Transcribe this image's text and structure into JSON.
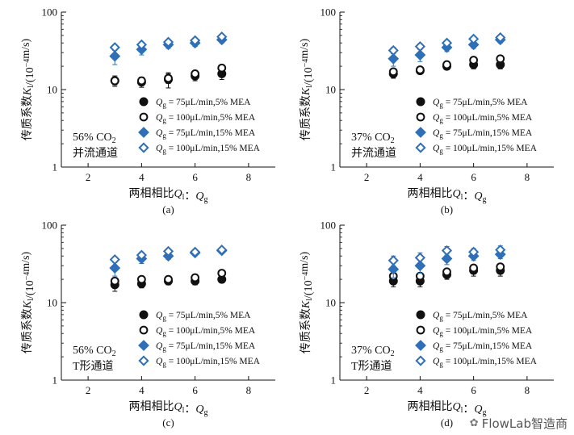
{
  "chart_data": [
    {
      "type": "scatter",
      "panel_label": "(a)",
      "condition": [
        "56% CO",
        "2",
        "并流通道"
      ],
      "xlabel": [
        "两相相比",
        "Q",
        "l",
        "：",
        "Q",
        "g"
      ],
      "ylabel": [
        "传质系数",
        "K",
        "l",
        "/(10",
        "−4",
        "m/s)"
      ],
      "xlim": [
        1,
        9
      ],
      "ylim": [
        1,
        100
      ],
      "yscale": "log",
      "xticks": [
        "2",
        "4",
        "6",
        "8"
      ],
      "yticks": [
        "1",
        "10",
        "100"
      ],
      "series": [
        {
          "name": [
            "Q",
            "g",
            " = 75μL/min,5% MEA"
          ],
          "marker": "filled-circle",
          "color": "#111111",
          "x": [
            3,
            4,
            5,
            6,
            7
          ],
          "y": [
            13,
            12.5,
            13.5,
            15,
            16
          ],
          "err": [
            2,
            1.8,
            3,
            2,
            2.5
          ]
        },
        {
          "name": [
            "Q",
            "g",
            " = 100μL/min,5% MEA"
          ],
          "marker": "open-circle",
          "color": "#111111",
          "x": [
            3,
            4,
            5,
            6,
            7
          ],
          "y": [
            13,
            13,
            14,
            16,
            19
          ],
          "err": [
            1.5,
            1.5,
            2,
            1.5,
            1.5
          ]
        },
        {
          "name": [
            "Q",
            "g",
            " = 75μL/min,15% MEA"
          ],
          "marker": "filled-diamond",
          "color": "#2e6fb8",
          "x": [
            3,
            4,
            5,
            6,
            7
          ],
          "y": [
            27,
            33,
            38,
            40,
            44
          ],
          "err": [
            6,
            5,
            4,
            4,
            4
          ]
        },
        {
          "name": [
            "Q",
            "g",
            " = 100μL/min,15% MEA"
          ],
          "marker": "open-diamond",
          "color": "#2e6fb8",
          "x": [
            3,
            4,
            5,
            6,
            7
          ],
          "y": [
            35,
            38,
            41,
            43,
            48
          ],
          "err": [
            3,
            3,
            3,
            3,
            3
          ]
        }
      ]
    },
    {
      "type": "scatter",
      "panel_label": "(b)",
      "condition": [
        "37% CO",
        "2",
        "并流通道"
      ],
      "xlabel": [
        "两相相比",
        "Q",
        "l",
        "：",
        "Q",
        "g"
      ],
      "ylabel": [
        "传质系数",
        "K",
        "l",
        "/(10",
        "−4",
        "m/s)"
      ],
      "xlim": [
        1,
        9
      ],
      "ylim": [
        1,
        100
      ],
      "yscale": "log",
      "xticks": [
        "2",
        "4",
        "6",
        "8"
      ],
      "yticks": [
        "1",
        "10",
        "100"
      ],
      "series": [
        {
          "name": [
            "Q",
            "g",
            " = 75μL/min,5% MEA"
          ],
          "marker": "filled-circle",
          "color": "#111111",
          "x": [
            3,
            4,
            5,
            6,
            7
          ],
          "y": [
            16,
            17.5,
            20,
            21,
            21
          ],
          "err": [
            2,
            1.5,
            2,
            2.5,
            2.5
          ]
        },
        {
          "name": [
            "Q",
            "g",
            " = 100μL/min,5% MEA"
          ],
          "marker": "open-circle",
          "color": "#111111",
          "x": [
            3,
            4,
            5,
            6,
            7
          ],
          "y": [
            17,
            18,
            21,
            24,
            25
          ],
          "err": [
            1.5,
            1.5,
            1.5,
            2,
            2
          ]
        },
        {
          "name": [
            "Q",
            "g",
            " = 75μL/min,15% MEA"
          ],
          "marker": "filled-diamond",
          "color": "#2e6fb8",
          "x": [
            3,
            4,
            5,
            6,
            7
          ],
          "y": [
            25,
            28,
            35,
            38,
            44
          ],
          "err": [
            5,
            5,
            4,
            4,
            4
          ]
        },
        {
          "name": [
            "Q",
            "g",
            " = 100μL/min,15% MEA"
          ],
          "marker": "open-diamond",
          "color": "#2e6fb8",
          "x": [
            3,
            4,
            5,
            6,
            7
          ],
          "y": [
            32,
            36,
            40,
            45,
            47
          ],
          "err": [
            3,
            3,
            3,
            3,
            3
          ]
        }
      ]
    },
    {
      "type": "scatter",
      "panel_label": "(c)",
      "condition": [
        "56% CO",
        "2",
        "T形通道"
      ],
      "xlabel": [
        "两相相比",
        "Q",
        "l",
        "：",
        "Q",
        "g"
      ],
      "ylabel": [
        "传质系数",
        "K",
        "l",
        "/(10",
        "−4",
        "m/s)"
      ],
      "xlim": [
        1,
        9
      ],
      "ylim": [
        1,
        100
      ],
      "yscale": "log",
      "xticks": [
        "2",
        "4",
        "6",
        "8"
      ],
      "yticks": [
        "1",
        "10",
        "100"
      ],
      "series": [
        {
          "name": [
            "Q",
            "g",
            " = 75μL/min,5% MEA"
          ],
          "marker": "filled-circle",
          "color": "#111111",
          "x": [
            3,
            4,
            5,
            6,
            7
          ],
          "y": [
            17,
            17.5,
            19,
            19,
            20
          ],
          "err": [
            3,
            2,
            2,
            2,
            2
          ]
        },
        {
          "name": [
            "Q",
            "g",
            " = 100μL/min,5% MEA"
          ],
          "marker": "open-circle",
          "color": "#111111",
          "x": [
            3,
            4,
            5,
            6,
            7
          ],
          "y": [
            19,
            20,
            20,
            21,
            24
          ],
          "err": [
            2,
            1.5,
            1.5,
            1.5,
            1.5
          ]
        },
        {
          "name": [
            "Q",
            "g",
            " = 75μL/min,15% MEA"
          ],
          "marker": "filled-diamond",
          "color": "#2e6fb8",
          "x": [
            3,
            4,
            5,
            6,
            7
          ],
          "y": [
            28,
            37,
            40,
            44,
            47
          ],
          "err": [
            6,
            5,
            4,
            4,
            4
          ]
        },
        {
          "name": [
            "Q",
            "g",
            " = 100μL/min,15% MEA"
          ],
          "marker": "open-diamond",
          "color": "#2e6fb8",
          "x": [
            3,
            4,
            5,
            6,
            7
          ],
          "y": [
            36,
            41,
            46,
            45,
            48
          ],
          "err": [
            3,
            4,
            3,
            3,
            3
          ]
        }
      ]
    },
    {
      "type": "scatter",
      "panel_label": "(d)",
      "condition": [
        "37% CO",
        "2",
        "T形通道"
      ],
      "xlabel": [
        "两相相比",
        "Q",
        "l",
        "：",
        "Q",
        "g"
      ],
      "ylabel": [
        "传质系数",
        "K",
        "l",
        "/(10",
        "−4",
        "m/s)"
      ],
      "xlim": [
        1,
        9
      ],
      "ylim": [
        1,
        100
      ],
      "yscale": "log",
      "xticks": [
        "2",
        "4",
        "6",
        "8"
      ],
      "yticks": [
        "1",
        "10",
        "100"
      ],
      "series": [
        {
          "name": [
            "Q",
            "g",
            " = 75μL/min,5% MEA"
          ],
          "marker": "filled-circle",
          "color": "#111111",
          "x": [
            3,
            4,
            5,
            6,
            7
          ],
          "y": [
            19,
            19,
            23,
            26,
            26
          ],
          "err": [
            3,
            3,
            3,
            4,
            4
          ]
        },
        {
          "name": [
            "Q",
            "g",
            " = 100μL/min,5% MEA"
          ],
          "marker": "open-circle",
          "color": "#111111",
          "x": [
            3,
            4,
            5,
            6,
            7
          ],
          "y": [
            22,
            22,
            25,
            28,
            29
          ],
          "err": [
            2,
            2,
            2,
            2,
            2
          ]
        },
        {
          "name": [
            "Q",
            "g",
            " = 75μL/min,15% MEA"
          ],
          "marker": "filled-diamond",
          "color": "#2e6fb8",
          "x": [
            3,
            4,
            5,
            6,
            7
          ],
          "y": [
            27,
            30,
            37,
            40,
            42
          ],
          "err": [
            6,
            6,
            6,
            5,
            5
          ]
        },
        {
          "name": [
            "Q",
            "g",
            " = 100μL/min,15% MEA"
          ],
          "marker": "open-diamond",
          "color": "#2e6fb8",
          "x": [
            3,
            4,
            5,
            6,
            7
          ],
          "y": [
            35,
            38,
            47,
            45,
            48
          ],
          "err": [
            5,
            6,
            6,
            5,
            6
          ]
        }
      ]
    }
  ],
  "watermark": {
    "icon": "wechat-icon",
    "text": "FlowLab智造商"
  }
}
